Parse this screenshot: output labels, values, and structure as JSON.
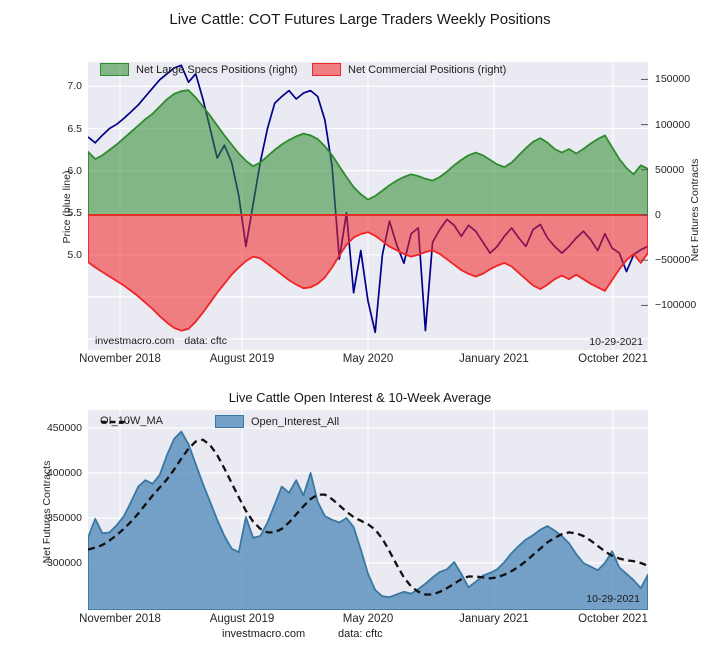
{
  "chart_data": [
    {
      "type": "area",
      "title": "Live Cattle: COT Futures Large Traders Weekly Positions",
      "x_axis": {
        "ticks": [
          "November 2018",
          "August 2019",
          "May 2020",
          "January 2021",
          "October 2021"
        ]
      },
      "left_axis": {
        "label": "Price (blue line)",
        "ticks": [
          7.0,
          6.5,
          6.0,
          5.5,
          5.0
        ],
        "range": [
          3.95,
          7.29
        ]
      },
      "right_axis": {
        "label": "Net Futures Contracts",
        "ticks": [
          150000,
          100000,
          50000,
          0,
          -50000,
          -100000
        ],
        "range": [
          -152000,
          169000
        ]
      },
      "legend": [
        "Net Large Specs Positions (right)",
        "Net Commercial Positions (right)"
      ],
      "annotations": {
        "source": "investmacro.com",
        "data_note": "data: cftc",
        "last_date": "10-29-2021"
      },
      "grid": true,
      "legend_position": "top-left-inside",
      "series": [
        {
          "name": "Price",
          "axis": "left",
          "style": "line",
          "color": "#00008b",
          "values": [
            6.4,
            6.33,
            6.42,
            6.5,
            6.55,
            6.62,
            6.7,
            6.78,
            6.88,
            6.98,
            7.08,
            7.15,
            7.22,
            7.25,
            7.05,
            7.15,
            6.85,
            6.5,
            6.15,
            6.3,
            6.1,
            5.7,
            5.1,
            5.6,
            6.1,
            6.5,
            6.8,
            6.88,
            6.95,
            6.85,
            6.92,
            6.95,
            6.88,
            6.6,
            6.05,
            4.95,
            5.5,
            4.55,
            5.05,
            4.45,
            4.08,
            5.0,
            5.4,
            5.12,
            4.9,
            5.25,
            5.32,
            4.1,
            5.15,
            5.3,
            5.42,
            5.35,
            5.22,
            5.35,
            5.28,
            5.15,
            5.02,
            5.1,
            5.22,
            5.32,
            5.2,
            5.1,
            5.3,
            5.36,
            5.2,
            5.1,
            5.02,
            5.1,
            5.2,
            5.28,
            5.18,
            5.05,
            5.25,
            5.08,
            5.02,
            4.8,
            5.0,
            5.06,
            5.1
          ]
        },
        {
          "name": "Net Large Specs Positions",
          "axis": "right",
          "style": "area",
          "color": "#2e8b2e",
          "values": [
            70000,
            62000,
            66000,
            72000,
            78000,
            85000,
            92000,
            99000,
            106000,
            112000,
            120000,
            128000,
            134000,
            137000,
            138000,
            130000,
            120000,
            110000,
            99000,
            88000,
            78000,
            68000,
            60000,
            54000,
            58000,
            65000,
            72000,
            78000,
            83000,
            87000,
            90000,
            88000,
            84000,
            76000,
            66000,
            54000,
            42000,
            31000,
            23000,
            17000,
            21000,
            27000,
            33000,
            38000,
            42000,
            45000,
            43000,
            40000,
            38000,
            42000,
            48000,
            55000,
            61000,
            66000,
            69000,
            66000,
            61000,
            56000,
            53000,
            58000,
            66000,
            74000,
            81000,
            85000,
            80000,
            73000,
            69000,
            73000,
            68000,
            73000,
            79000,
            84000,
            88000,
            75000,
            62000,
            52000,
            45000,
            55000,
            51000
          ]
        },
        {
          "name": "Net Commercial Positions",
          "axis": "right",
          "style": "area",
          "color": "#f02525",
          "values": [
            -52000,
            -58000,
            -63000,
            -68000,
            -73000,
            -78000,
            -84000,
            -90000,
            -97000,
            -104000,
            -112000,
            -119000,
            -125000,
            -128000,
            -126000,
            -118000,
            -108000,
            -97000,
            -86000,
            -76000,
            -66000,
            -58000,
            -51000,
            -46000,
            -48000,
            -54000,
            -60000,
            -66000,
            -72000,
            -77000,
            -81000,
            -80000,
            -76000,
            -69000,
            -58000,
            -45000,
            -33000,
            -25000,
            -21000,
            -19000,
            -23000,
            -29000,
            -35000,
            -39000,
            -43000,
            -46000,
            -44000,
            -41000,
            -39000,
            -43000,
            -49000,
            -55000,
            -61000,
            -65000,
            -68000,
            -65000,
            -60000,
            -56000,
            -53000,
            -57000,
            -64000,
            -71000,
            -78000,
            -82000,
            -77000,
            -71000,
            -67000,
            -71000,
            -66000,
            -71000,
            -76000,
            -80000,
            -84000,
            -72000,
            -60000,
            -50000,
            -43000,
            -53000,
            -42000
          ]
        }
      ]
    },
    {
      "type": "area",
      "title": "Live Cattle Open Interest & 10-Week Average",
      "x_axis": {
        "ticks": [
          "November 2018",
          "August 2019",
          "May 2020",
          "January 2021",
          "October 2021"
        ]
      },
      "left_axis": {
        "label": "Net Futures Contracts",
        "ticks": [
          450000,
          400000,
          350000,
          300000
        ],
        "range": [
          248000,
          470000
        ]
      },
      "legend": [
        "OI_10W_MA",
        "Open_Interest_All"
      ],
      "annotations": {
        "source": "investmacro.com",
        "data_note": "data: cftc",
        "last_date": "10-29-2021"
      },
      "grid": true,
      "legend_position": "top-left-inside",
      "series": [
        {
          "name": "OI_10W_MA",
          "style": "dashed-line",
          "color": "#111111",
          "values": [
            315000,
            317000,
            320000,
            325000,
            331000,
            338000,
            346000,
            355000,
            365000,
            375000,
            384000,
            393000,
            404000,
            416000,
            427000,
            435000,
            437000,
            431000,
            420000,
            405000,
            389000,
            373000,
            358000,
            346000,
            338000,
            334000,
            334000,
            338000,
            345000,
            354000,
            363000,
            371000,
            376000,
            376000,
            371000,
            364000,
            357000,
            351000,
            347000,
            343000,
            337000,
            327000,
            313000,
            298000,
            284000,
            274000,
            268000,
            265000,
            265000,
            268000,
            272000,
            277000,
            282000,
            285000,
            285000,
            284000,
            283000,
            284000,
            287000,
            291000,
            296000,
            302000,
            309000,
            316000,
            323000,
            328000,
            332000,
            334000,
            333000,
            330000,
            325000,
            319000,
            313000,
            308000,
            305000,
            303000,
            302000,
            300000,
            297000
          ]
        },
        {
          "name": "Open_Interest_All",
          "style": "area",
          "color": "#4682b4",
          "edge_color": "#3878a2",
          "values": [
            328000,
            349000,
            333000,
            334000,
            342000,
            352000,
            368000,
            385000,
            392000,
            388000,
            398000,
            420000,
            438000,
            446000,
            432000,
            410000,
            388000,
            368000,
            348000,
            330000,
            316000,
            312000,
            351000,
            328000,
            330000,
            345000,
            365000,
            385000,
            378000,
            392000,
            375000,
            400000,
            368000,
            352000,
            348000,
            345000,
            350000,
            340000,
            315000,
            288000,
            270000,
            263000,
            262000,
            265000,
            268000,
            266000,
            271000,
            277000,
            284000,
            290000,
            293000,
            301000,
            288000,
            273000,
            279000,
            286000,
            289000,
            293000,
            301000,
            311000,
            319000,
            326000,
            331000,
            337000,
            341000,
            336000,
            330000,
            322000,
            310000,
            300000,
            296000,
            292000,
            300000,
            313000,
            295000,
            288000,
            281000,
            272000,
            287000
          ]
        }
      ]
    }
  ]
}
